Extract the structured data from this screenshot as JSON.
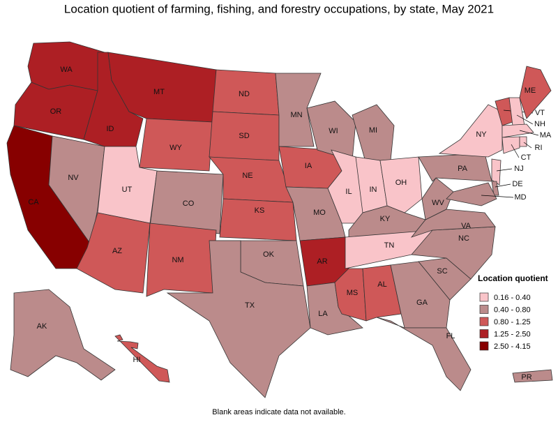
{
  "title": "Location quotient of farming, fishing, and forestry occupations, by state, May 2021",
  "legend": {
    "title": "Location quotient",
    "classes": [
      {
        "label": "0.16 - 0.40",
        "color": "#f9c4c9"
      },
      {
        "label": "0.40 - 0.80",
        "color": "#bb8b8b"
      },
      {
        "label": "0.80 - 1.25",
        "color": "#cf5858"
      },
      {
        "label": "1.25 - 2.50",
        "color": "#ad1f24"
      },
      {
        "label": "2.50 - 4.15",
        "color": "#870000"
      }
    ]
  },
  "states": [
    {
      "abbr": "WA",
      "color": "#ad1f24"
    },
    {
      "abbr": "OR",
      "color": "#ad1f24"
    },
    {
      "abbr": "CA",
      "color": "#870000"
    },
    {
      "abbr": "NV",
      "color": "#bb8b8b"
    },
    {
      "abbr": "ID",
      "color": "#ad1f24"
    },
    {
      "abbr": "MT",
      "color": "#ad1f24"
    },
    {
      "abbr": "WY",
      "color": "#cf5858"
    },
    {
      "abbr": "UT",
      "color": "#f9c4c9"
    },
    {
      "abbr": "CO",
      "color": "#bb8b8b"
    },
    {
      "abbr": "AZ",
      "color": "#cf5858"
    },
    {
      "abbr": "NM",
      "color": "#cf5858"
    },
    {
      "abbr": "ND",
      "color": "#cf5858"
    },
    {
      "abbr": "SD",
      "color": "#cf5858"
    },
    {
      "abbr": "NE",
      "color": "#cf5858"
    },
    {
      "abbr": "KS",
      "color": "#cf5858"
    },
    {
      "abbr": "OK",
      "color": "#bb8b8b"
    },
    {
      "abbr": "TX",
      "color": "#bb8b8b"
    },
    {
      "abbr": "MN",
      "color": "#bb8b8b"
    },
    {
      "abbr": "IA",
      "color": "#cf5858"
    },
    {
      "abbr": "MO",
      "color": "#bb8b8b"
    },
    {
      "abbr": "AR",
      "color": "#ad1f24"
    },
    {
      "abbr": "LA",
      "color": "#bb8b8b"
    },
    {
      "abbr": "WI",
      "color": "#bb8b8b"
    },
    {
      "abbr": "MI",
      "color": "#bb8b8b"
    },
    {
      "abbr": "IL",
      "color": "#f9c4c9"
    },
    {
      "abbr": "IN",
      "color": "#f9c4c9"
    },
    {
      "abbr": "OH",
      "color": "#f9c4c9"
    },
    {
      "abbr": "KY",
      "color": "#bb8b8b"
    },
    {
      "abbr": "TN",
      "color": "#f9c4c9"
    },
    {
      "abbr": "MS",
      "color": "#cf5858"
    },
    {
      "abbr": "AL",
      "color": "#cf5858"
    },
    {
      "abbr": "GA",
      "color": "#bb8b8b"
    },
    {
      "abbr": "FL",
      "color": "#bb8b8b"
    },
    {
      "abbr": "SC",
      "color": "#bb8b8b"
    },
    {
      "abbr": "NC",
      "color": "#bb8b8b"
    },
    {
      "abbr": "VA",
      "color": "#bb8b8b"
    },
    {
      "abbr": "WV",
      "color": "#bb8b8b"
    },
    {
      "abbr": "PA",
      "color": "#bb8b8b"
    },
    {
      "abbr": "NY",
      "color": "#f9c4c9"
    },
    {
      "abbr": "VT",
      "color": "#cf5858"
    },
    {
      "abbr": "NH",
      "color": "#f9c4c9"
    },
    {
      "abbr": "ME",
      "color": "#cf5858"
    },
    {
      "abbr": "MA",
      "color": "#f9c4c9"
    },
    {
      "abbr": "CT",
      "color": "#f9c4c9"
    },
    {
      "abbr": "RI",
      "color": "#f9c4c9"
    },
    {
      "abbr": "NJ",
      "color": "#f9c4c9"
    },
    {
      "abbr": "DE",
      "color": "#bb8b8b"
    },
    {
      "abbr": "MD",
      "color": "#bb8b8b"
    },
    {
      "abbr": "AK",
      "color": "#bb8b8b"
    },
    {
      "abbr": "HI",
      "color": "#cf5858"
    },
    {
      "abbr": "PR",
      "color": "#bb8b8b"
    }
  ],
  "footnote": "Blank areas indicate data not available."
}
